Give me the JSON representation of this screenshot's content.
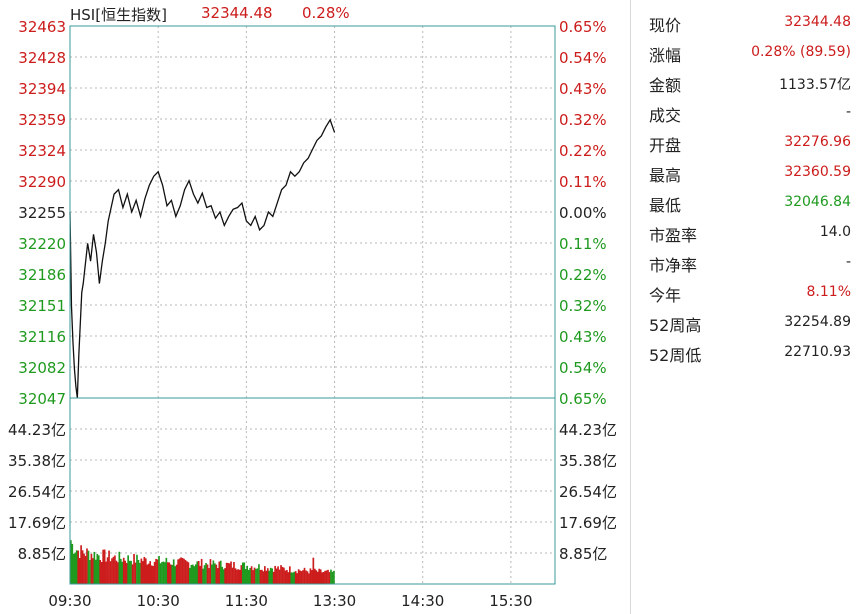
{
  "header": {
    "code_label": "HSI[恒生指数]",
    "price": "32344.48",
    "change_pct": "0.28%"
  },
  "colors": {
    "up": "#cc1c1c",
    "down": "#1f9a1f",
    "neutral": "#222222",
    "grid": "#b9b9b9",
    "frame": "#3a9a9a"
  },
  "quote": [
    {
      "label": "现价",
      "value": "32344.48",
      "tone": "up"
    },
    {
      "label": "涨幅",
      "value": "0.28% (89.59)",
      "tone": "up"
    },
    {
      "label": "金额",
      "value": "1133.57亿",
      "tone": "neutral"
    },
    {
      "label": "成交",
      "value": "-",
      "tone": "neutral"
    },
    {
      "label": "开盘",
      "value": "32276.96",
      "tone": "up"
    },
    {
      "label": "最高",
      "value": "32360.59",
      "tone": "up"
    },
    {
      "label": "最低",
      "value": "32046.84",
      "tone": "down"
    },
    {
      "label": "市盈率",
      "value": "14.0",
      "tone": "neutral"
    },
    {
      "label": "市净率",
      "value": "-",
      "tone": "neutral"
    },
    {
      "label": "今年",
      "value": "8.11%",
      "tone": "up"
    },
    {
      "label": "52周高",
      "value": "32254.89",
      "tone": "neutral"
    },
    {
      "label": "52周低",
      "value": "22710.93",
      "tone": "neutral"
    }
  ],
  "chart_data": {
    "type": "line",
    "title": "HSI[恒生指数]",
    "price_axis": {
      "ylim": [
        32047,
        32463
      ],
      "ticks": [
        "32463",
        "32428",
        "32394",
        "32359",
        "32324",
        "32290",
        "32255",
        "32220",
        "32186",
        "32151",
        "32116",
        "32082",
        "32047"
      ],
      "pct_ticks": [
        "0.65%",
        "0.54%",
        "0.43%",
        "0.32%",
        "0.22%",
        "0.11%",
        "0.00%",
        "0.11%",
        "0.22%",
        "0.32%",
        "0.43%",
        "0.54%",
        "0.65%"
      ],
      "tick_tones": [
        "up",
        "up",
        "up",
        "up",
        "up",
        "up",
        "neutral",
        "down",
        "down",
        "down",
        "down",
        "down",
        "down"
      ]
    },
    "volume_axis": {
      "ylim": [
        0,
        53.08
      ],
      "ticks": [
        "44.23亿",
        "35.38亿",
        "26.54亿",
        "17.69亿",
        "8.85亿"
      ],
      "tick_values": [
        44.23,
        35.38,
        26.54,
        17.69,
        8.85
      ]
    },
    "time_axis": {
      "ticks": [
        "09:30",
        "10:30",
        "11:30",
        "13:30",
        "14:30",
        "15:30"
      ],
      "session_minutes": 330,
      "elapsed_minutes": 180
    },
    "price_series": {
      "name": "HSI",
      "x_minutes": [
        0,
        1,
        2,
        3,
        4,
        5,
        6,
        7,
        8,
        9,
        10,
        12,
        14,
        16,
        18,
        20,
        22,
        24,
        26,
        28,
        30,
        33,
        36,
        39,
        42,
        45,
        48,
        51,
        54,
        57,
        60,
        63,
        66,
        69,
        72,
        75,
        78,
        81,
        84,
        87,
        90,
        93,
        96,
        99,
        102,
        105,
        108,
        111,
        114,
        117,
        120,
        123,
        126,
        129,
        132,
        135,
        138,
        141,
        144,
        147,
        150,
        153,
        156,
        159,
        162,
        165,
        168,
        171,
        174,
        177,
        180
      ],
      "values": [
        32255,
        32150,
        32110,
        32080,
        32060,
        32047,
        32095,
        32130,
        32165,
        32175,
        32190,
        32220,
        32200,
        32230,
        32210,
        32175,
        32200,
        32220,
        32245,
        32260,
        32275,
        32280,
        32260,
        32275,
        32255,
        32268,
        32250,
        32270,
        32285,
        32295,
        32300,
        32285,
        32262,
        32268,
        32250,
        32262,
        32280,
        32290,
        32275,
        32265,
        32276,
        32260,
        32262,
        32248,
        32255,
        32240,
        32250,
        32258,
        32260,
        32265,
        32245,
        32240,
        32250,
        32235,
        32240,
        32255,
        32250,
        32265,
        32280,
        32285,
        32300,
        32295,
        32300,
        32310,
        32315,
        32325,
        32335,
        32340,
        32350,
        32358,
        32344
      ]
    },
    "volume_series": {
      "name": "成交额",
      "profile_minutes": [
        0,
        5,
        15,
        30,
        60,
        90,
        120,
        150,
        160,
        170,
        180
      ],
      "profile_values": [
        11.5,
        9.5,
        8.5,
        7.5,
        6.5,
        5.8,
        5.2,
        4.2,
        3.8,
        3.5,
        3.2
      ],
      "spikes": [
        {
          "minute": 0,
          "value": 12.5
        },
        {
          "minute": 165,
          "value": 7.5
        }
      ]
    }
  }
}
